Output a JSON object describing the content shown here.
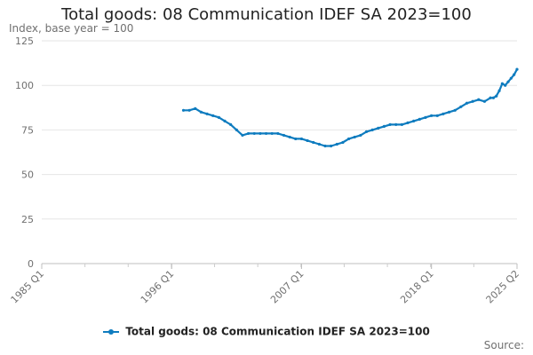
{
  "chart_data": {
    "type": "line",
    "title": "Total goods: 08 Communication IDEF SA 2023=100",
    "ylabel": "Index, base year = 100",
    "xlabel": "",
    "ylim": [
      0,
      125
    ],
    "yticks": [
      0,
      25,
      50,
      75,
      100,
      125
    ],
    "x_range": [
      1985.0,
      2025.25
    ],
    "xticks": [
      {
        "label": "1985 Q1",
        "value": 1985.0
      },
      {
        "label": "1996 Q1",
        "value": 1996.0
      },
      {
        "label": "2007 Q1",
        "value": 2007.0
      },
      {
        "label": "2018 Q1",
        "value": 2018.0
      },
      {
        "label": "2025 Q2",
        "value": 2025.25
      }
    ],
    "source": "Source:",
    "series": [
      {
        "name": "Total goods: 08 Communication IDEF SA 2023=100",
        "color": "#0f7cbf",
        "points": [
          [
            1997.0,
            86
          ],
          [
            1997.5,
            86
          ],
          [
            1998.0,
            87
          ],
          [
            1998.5,
            85
          ],
          [
            1999.0,
            84
          ],
          [
            1999.5,
            83
          ],
          [
            2000.0,
            82
          ],
          [
            2000.5,
            80
          ],
          [
            2001.0,
            78
          ],
          [
            2001.5,
            75
          ],
          [
            2002.0,
            72
          ],
          [
            2002.5,
            73
          ],
          [
            2003.0,
            73
          ],
          [
            2003.5,
            73
          ],
          [
            2004.0,
            73
          ],
          [
            2004.5,
            73
          ],
          [
            2005.0,
            73
          ],
          [
            2005.5,
            72
          ],
          [
            2006.0,
            71
          ],
          [
            2006.5,
            70
          ],
          [
            2007.0,
            70
          ],
          [
            2007.5,
            69
          ],
          [
            2008.0,
            68
          ],
          [
            2008.5,
            67
          ],
          [
            2009.0,
            66
          ],
          [
            2009.5,
            66
          ],
          [
            2010.0,
            67
          ],
          [
            2010.5,
            68
          ],
          [
            2011.0,
            70
          ],
          [
            2011.5,
            71
          ],
          [
            2012.0,
            72
          ],
          [
            2012.5,
            74
          ],
          [
            2013.0,
            75
          ],
          [
            2013.5,
            76
          ],
          [
            2014.0,
            77
          ],
          [
            2014.5,
            78
          ],
          [
            2015.0,
            78
          ],
          [
            2015.5,
            78
          ],
          [
            2016.0,
            79
          ],
          [
            2016.5,
            80
          ],
          [
            2017.0,
            81
          ],
          [
            2017.5,
            82
          ],
          [
            2018.0,
            83
          ],
          [
            2018.5,
            83
          ],
          [
            2019.0,
            84
          ],
          [
            2019.5,
            85
          ],
          [
            2020.0,
            86
          ],
          [
            2020.5,
            88
          ],
          [
            2021.0,
            90
          ],
          [
            2021.5,
            91
          ],
          [
            2022.0,
            92
          ],
          [
            2022.5,
            91
          ],
          [
            2023.0,
            93
          ],
          [
            2023.25,
            93
          ],
          [
            2023.5,
            94
          ],
          [
            2023.75,
            97
          ],
          [
            2024.0,
            101
          ],
          [
            2024.25,
            100
          ],
          [
            2024.5,
            102
          ],
          [
            2024.75,
            104
          ],
          [
            2025.0,
            106
          ],
          [
            2025.25,
            109
          ]
        ]
      }
    ]
  }
}
